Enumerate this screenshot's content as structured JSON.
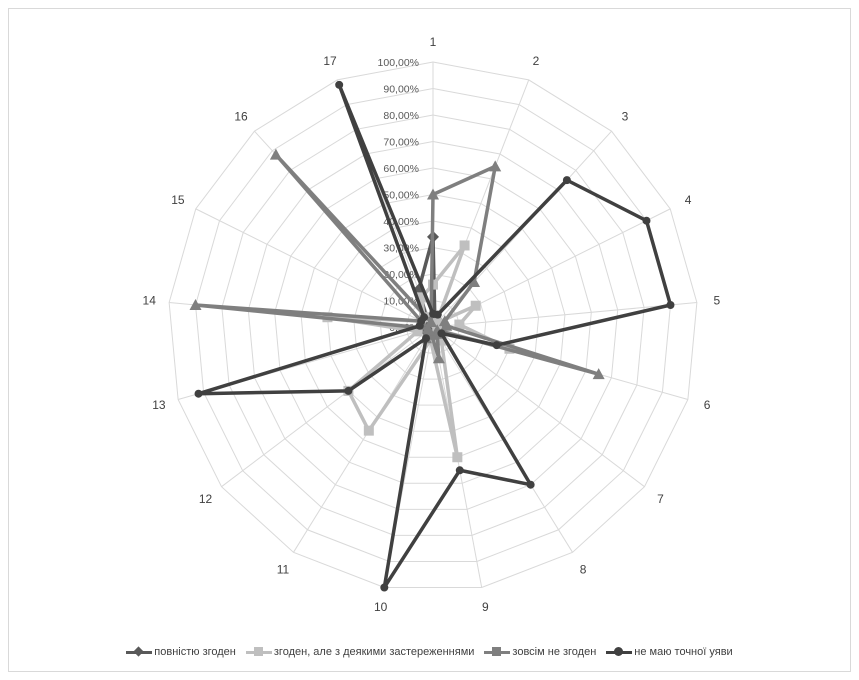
{
  "chart_data": {
    "type": "radar",
    "categories": [
      "1",
      "2",
      "3",
      "4",
      "5",
      "6",
      "7",
      "8",
      "9",
      "10",
      "11",
      "12",
      "13",
      "14",
      "15",
      "16",
      "17"
    ],
    "ticks": [
      "0,00%",
      "10,00%",
      "20,00%",
      "30,00%",
      "40,00%",
      "50,00%",
      "60,00%",
      "70,00%",
      "80,00%",
      "90,00%",
      "100,00%"
    ],
    "rlim": [
      0,
      100
    ],
    "grid": true,
    "legend_position": "bottom",
    "series": [
      {
        "name": "повністю згоден",
        "color": "#595959",
        "marker": "diamond",
        "values": [
          34,
          2,
          3,
          2,
          3,
          2,
          2,
          3,
          2,
          4,
          3,
          3,
          2,
          2,
          3,
          3,
          15
        ]
      },
      {
        "name": "згоден, але з деякими застереженнями",
        "color": "#bfbfbf",
        "marker": "square",
        "values": [
          16,
          33,
          2,
          18,
          10,
          30,
          2,
          6,
          50,
          5,
          46,
          40,
          6,
          40,
          5,
          5,
          12
        ]
      },
      {
        "name": "зовсім не згоден",
        "color": "#7f7f7f",
        "marker": "triangle",
        "values": [
          50,
          65,
          23,
          5,
          5,
          65,
          2,
          3,
          12,
          3,
          5,
          2,
          2,
          90,
          5,
          88,
          2
        ]
      },
      {
        "name": "не маю точної уяви",
        "color": "#404040",
        "marker": "circle",
        "values": [
          5,
          5,
          75,
          90,
          90,
          25,
          4,
          70,
          55,
          100,
          5,
          40,
          92,
          5,
          5,
          5,
          98
        ]
      }
    ]
  }
}
